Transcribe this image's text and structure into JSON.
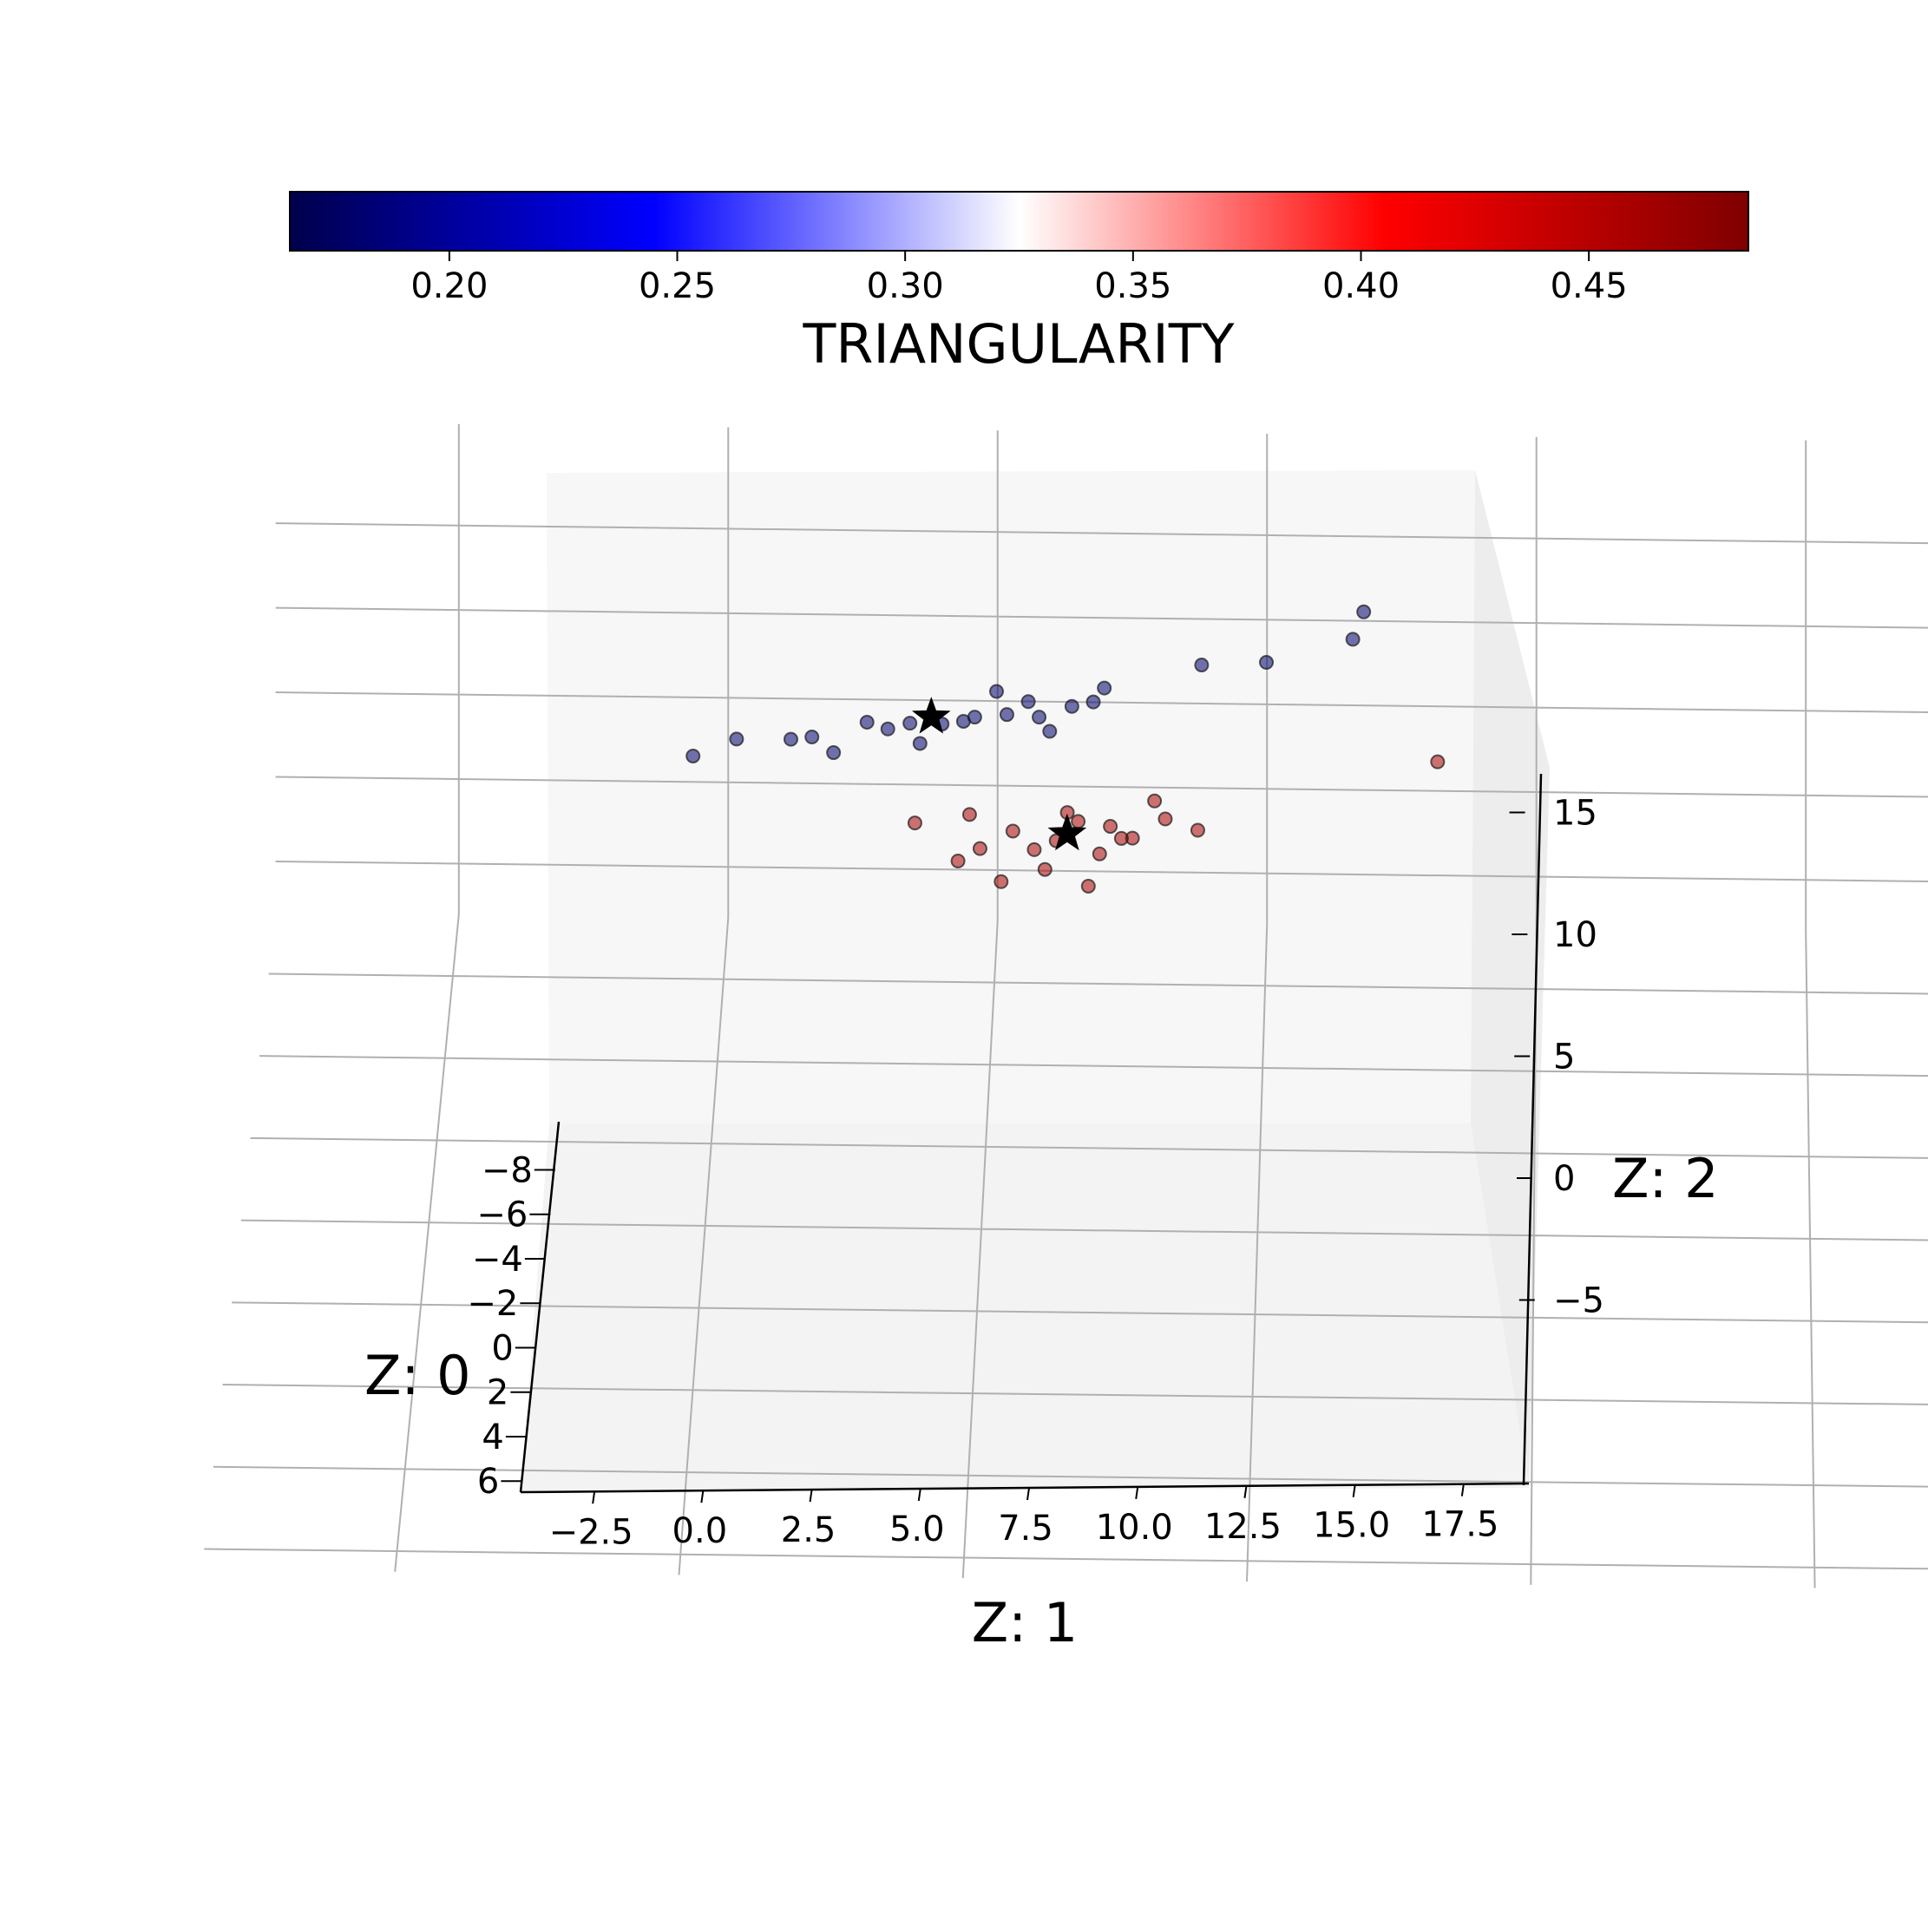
{
  "chart_data": {
    "type": "scatter",
    "projection": "3d",
    "colorbar": {
      "title": "TRIANGULARITY",
      "colormap": "seismic",
      "range": [
        0.165,
        0.485
      ],
      "ticks": [
        0.2,
        0.25,
        0.3,
        0.35,
        0.4,
        0.45
      ],
      "tick_labels": [
        "0.20",
        "0.25",
        "0.30",
        "0.35",
        "0.40",
        "0.45"
      ],
      "placement": "top"
    },
    "axes": {
      "x": {
        "label": "Z: 1",
        "range": [
          -4.2,
          19.0
        ],
        "ticks": [
          -2.5,
          0.0,
          2.5,
          5.0,
          7.5,
          10.0,
          12.5,
          15.0,
          17.5
        ],
        "tick_labels": [
          "−2.5",
          "0.0",
          "2.5",
          "5.0",
          "7.5",
          "10.0",
          "12.5",
          "15.0",
          "17.5"
        ]
      },
      "y": {
        "label": "Z: 0",
        "range": [
          -9.5,
          6.5
        ],
        "ticks": [
          -8,
          -6,
          -4,
          -2,
          0,
          2,
          4,
          6
        ],
        "tick_labels": [
          "−8",
          "−6",
          "−4",
          "−2",
          "0",
          "2",
          "4",
          "6"
        ]
      },
      "z": {
        "label": "Z: 2",
        "range": [
          -8,
          21
        ],
        "ticks": [
          -5,
          0,
          5,
          10,
          15
        ],
        "tick_labels": [
          "−5",
          "0",
          "5",
          "10",
          "15"
        ]
      },
      "grid": true
    },
    "series": [
      {
        "marker": "circle",
        "triangularity": 0.18,
        "points": [
          [
            -0.3,
            -8.6,
            3.6
          ],
          [
            0.1,
            -8.7,
            4.4
          ],
          [
            0.6,
            -8.8,
            4.2
          ],
          [
            1.0,
            -8.6,
            3.9
          ],
          [
            1.3,
            -9.0,
            4.8
          ],
          [
            1.7,
            -8.9,
            5.0
          ],
          [
            2.0,
            -8.8,
            5.2
          ],
          [
            2.3,
            -8.9,
            5.4
          ],
          [
            2.6,
            -8.8,
            5.8
          ],
          [
            2.9,
            -8.7,
            5.9
          ],
          [
            3.2,
            -8.9,
            6.1
          ],
          [
            2.5,
            -9.0,
            6.7
          ],
          [
            3.4,
            -8.8,
            6.6
          ],
          [
            3.5,
            -8.9,
            7.2
          ],
          [
            4.4,
            -9.0,
            8.4
          ],
          [
            5.0,
            -9.0,
            8.6
          ],
          [
            5.8,
            -9.1,
            9.8
          ],
          [
            5.9,
            -9.2,
            11.2
          ],
          [
            1.5,
            -8.7,
            5.1
          ],
          [
            0.8,
            -8.6,
            4.8
          ],
          [
            2.2,
            -8.7,
            5.6
          ],
          [
            2.8,
            -8.7,
            6.8
          ],
          [
            3.0,
            -8.6,
            5.3
          ],
          [
            1.8,
            -8.6,
            4.5
          ]
        ]
      },
      {
        "marker": "circle",
        "triangularity": 0.46,
        "points": [
          [
            1.8,
            -6.5,
            4.6
          ],
          [
            2.4,
            -6.4,
            3.4
          ],
          [
            2.7,
            -6.5,
            4.2
          ],
          [
            3.0,
            -6.2,
            2.7
          ],
          [
            3.3,
            -6.5,
            4.8
          ],
          [
            3.5,
            -6.3,
            3.4
          ],
          [
            3.8,
            -6.4,
            4.1
          ],
          [
            4.1,
            -6.5,
            5.0
          ],
          [
            4.4,
            -6.4,
            4.6
          ],
          [
            3.6,
            -6.2,
            5.2
          ],
          [
            3.1,
            -6.4,
            3.9
          ],
          [
            2.6,
            -6.1,
            2.2
          ],
          [
            3.4,
            -6.1,
            2.0
          ],
          [
            6.6,
            -6.8,
            7.8
          ],
          [
            4.0,
            -6.6,
            5.8
          ],
          [
            2.2,
            -6.3,
            2.9
          ],
          [
            2.9,
            -6.3,
            3.6
          ],
          [
            3.7,
            -6.3,
            4.3
          ],
          [
            3.2,
            -6.5,
            5.3
          ],
          [
            2.3,
            -6.6,
            4.9
          ]
        ]
      },
      {
        "marker": "star",
        "triangularity": 0.18,
        "points": [
          [
            1.9,
            -8.8,
            5.6
          ]
        ]
      },
      {
        "marker": "star",
        "triangularity": 0.46,
        "points": [
          [
            3.2,
            -6.4,
            4.3
          ]
        ]
      }
    ]
  }
}
